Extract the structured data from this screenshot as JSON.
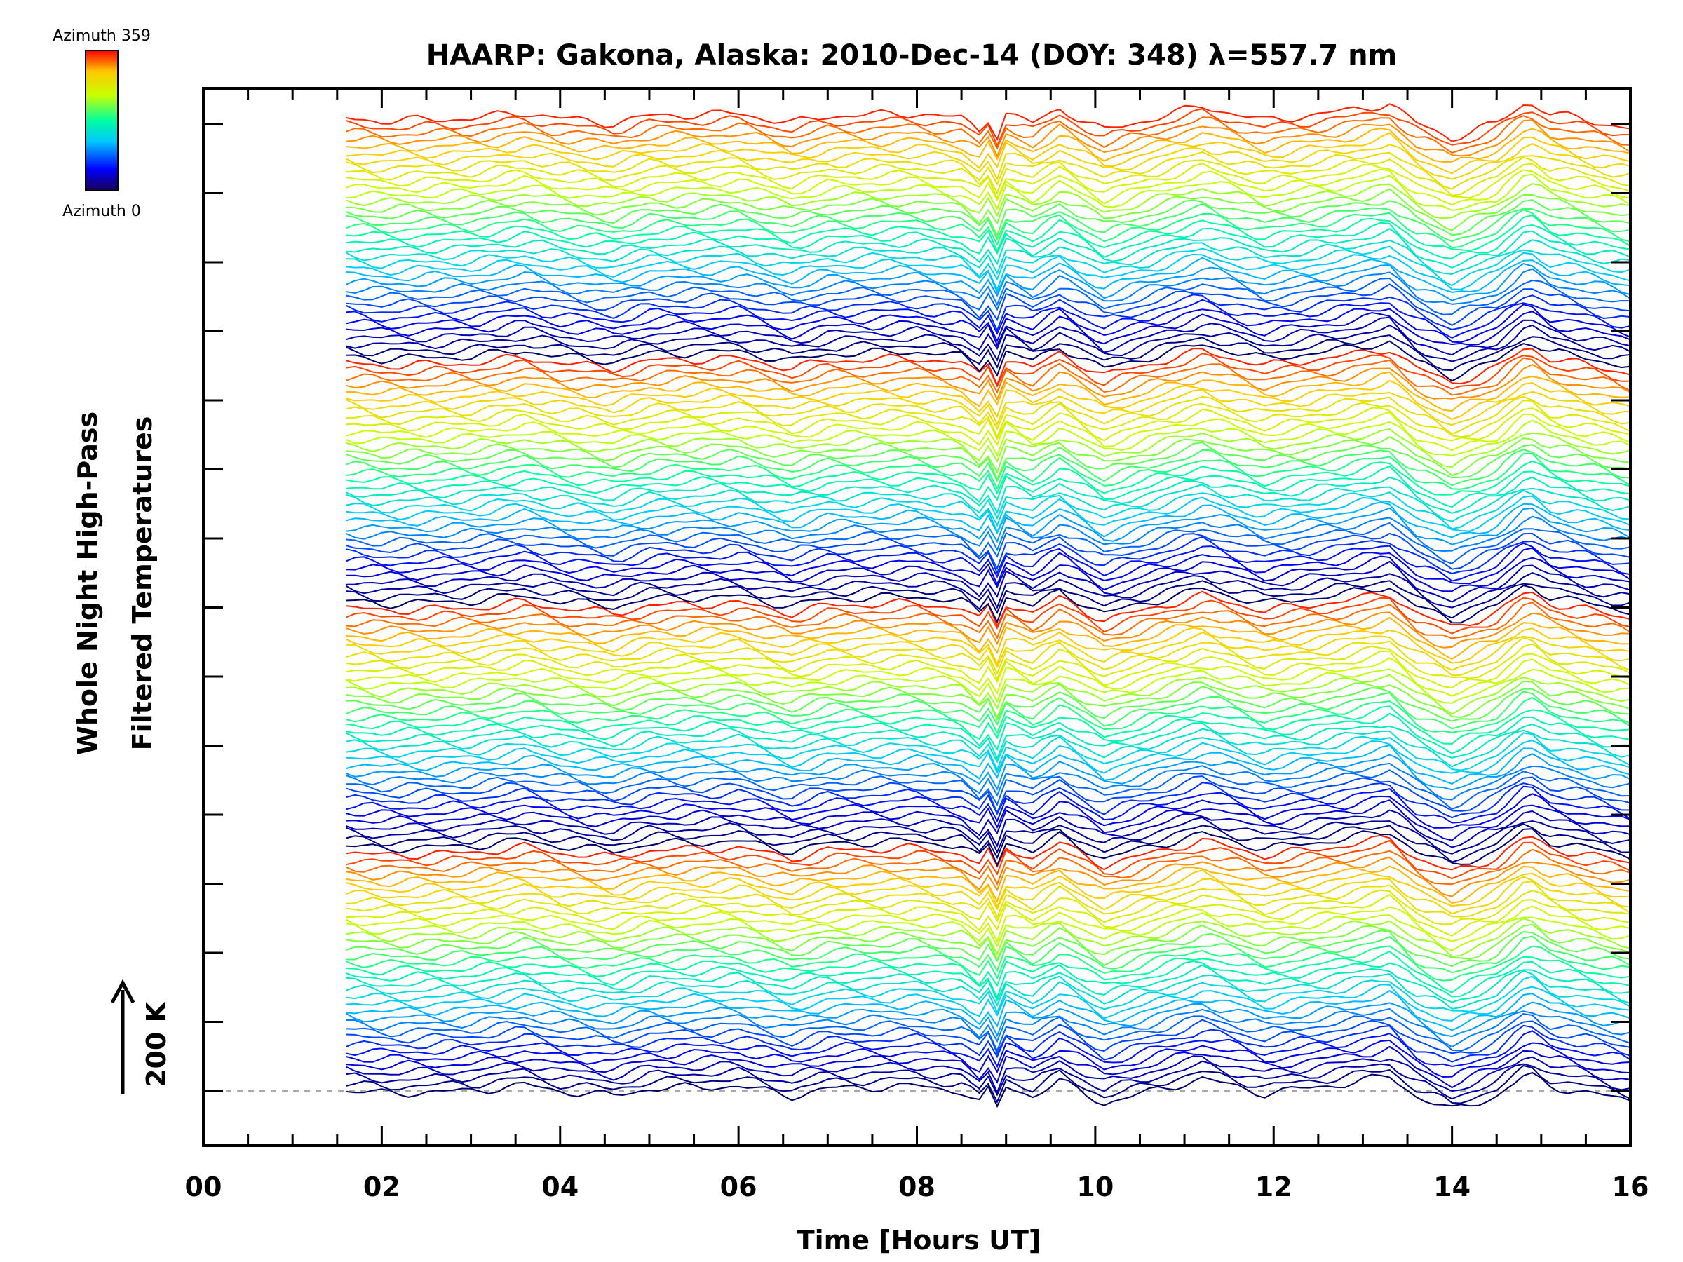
{
  "chart_data": {
    "type": "line",
    "title": "HAARP: Gakona,  Alaska: 2010-Dec-14 (DOY: 348) λ=557.7 nm",
    "xlabel": "Time [Hours UT]",
    "ylabel_line1": "Whole Night High-Pass",
    "ylabel_line2": "Filtered Temperatures",
    "xlim": [
      0,
      16
    ],
    "x_ticks": [
      "00",
      "02",
      "04",
      "06",
      "08",
      "10",
      "12",
      "14",
      "16"
    ],
    "scale_bar": {
      "label": "200 K",
      "value_K": 200
    },
    "colorbar": {
      "top_label": "Azimuth 359",
      "bottom_label": "Azimuth 0",
      "min": 0,
      "max": 359
    },
    "grid": false,
    "traces": {
      "count": 144,
      "azimuth_step_deg": 10,
      "x_start_hours": 1.6,
      "x_end_hours": 16.0,
      "sample_step_hours": 0.1
    },
    "common_signal": {
      "x": [
        1.6,
        2.0,
        3.0,
        3.6,
        4.0,
        4.6,
        5.0,
        6.0,
        6.6,
        7.0,
        8.0,
        8.5,
        8.75,
        8.85,
        8.9,
        9.0,
        9.3,
        9.6,
        10.1,
        11.2,
        11.9,
        12.8,
        13.3,
        13.6,
        14.0,
        14.5,
        14.85,
        15.1,
        16.0
      ],
      "y_K": [
        0,
        -5,
        0,
        12,
        0,
        -10,
        5,
        10,
        -10,
        5,
        10,
        0,
        -30,
        30,
        -35,
        10,
        -10,
        20,
        -25,
        25,
        -5,
        15,
        30,
        -10,
        -40,
        -10,
        35,
        10,
        -20
      ]
    },
    "series_colors": [
      "#00006a",
      "#0000ff",
      "#00c8ff",
      "#00ffa0",
      "#c8ff00",
      "#ffc800",
      "#ff0000"
    ]
  }
}
